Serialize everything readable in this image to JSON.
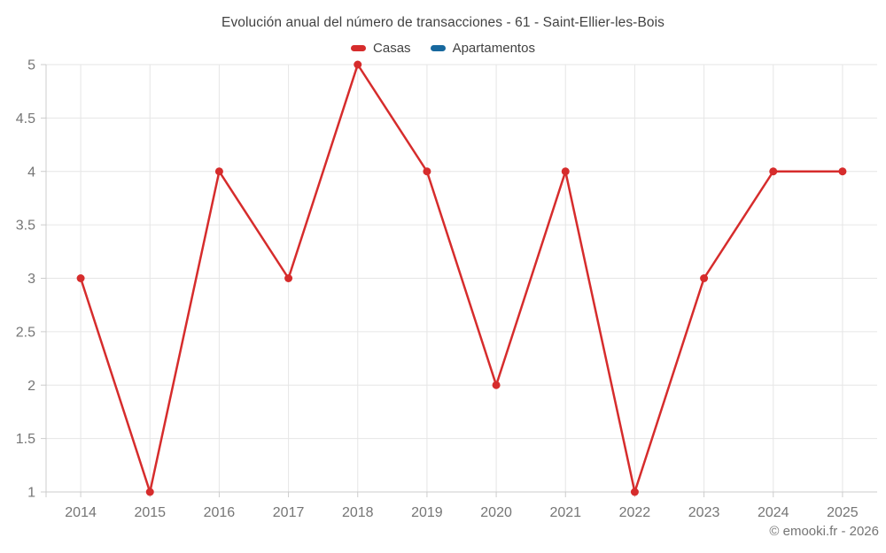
{
  "header": {
    "title": "Evolución anual del número de transacciones - 61 - Saint-Ellier-les-Bois"
  },
  "watermark": "© emooki.fr - 2026",
  "chart_data": {
    "type": "line",
    "title": "Evolución anual del número de transacciones - 61 - Saint-Ellier-les-Bois",
    "categories": [
      "2014",
      "2015",
      "2016",
      "2017",
      "2018",
      "2019",
      "2020",
      "2021",
      "2022",
      "2023",
      "2024",
      "2025"
    ],
    "series": [
      {
        "name": "Casas",
        "color": "#d62c2c",
        "values": [
          3,
          1,
          4,
          3,
          5,
          4,
          2,
          4,
          1,
          3,
          4,
          4
        ]
      },
      {
        "name": "Apartamentos",
        "color": "#17689e",
        "values": []
      }
    ],
    "xlabel": "",
    "ylabel": "",
    "ylim": [
      1,
      5
    ],
    "ytick_step": 0.5,
    "grid": true,
    "legend_position": "top",
    "marker": "circle"
  },
  "colors": {
    "casas_line": "#d62c2c",
    "apartamentos": "#17689e",
    "axis_label": "#757575",
    "grid_line": "#e6e6e6",
    "axis_line": "#cccccc",
    "title_text": "#424242"
  }
}
